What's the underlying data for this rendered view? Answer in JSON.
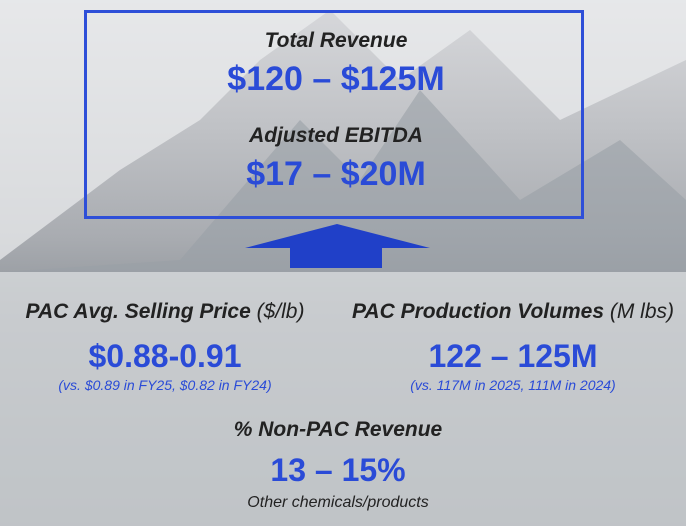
{
  "summary": {
    "items": [
      {
        "label": "Total Revenue",
        "value": "$120 – $125M"
      },
      {
        "label": "Adjusted EBITDA",
        "value": "$17 – $20M"
      }
    ]
  },
  "metrics": [
    {
      "label": "PAC Avg. Selling Price",
      "unit": "($/lb)",
      "value": "$0.88-0.91",
      "note": "(vs. $0.89 in FY25, $0.82 in FY24)"
    },
    {
      "label": "PAC Production Volumes",
      "unit": "(M lbs)",
      "value": "122 – 125M",
      "note": "(vs. 117M in 2025, 111M in 2024)"
    },
    {
      "label": "% Non-PAC Revenue",
      "value": "13 – 15%",
      "note": "Other chemicals/products"
    }
  ]
}
